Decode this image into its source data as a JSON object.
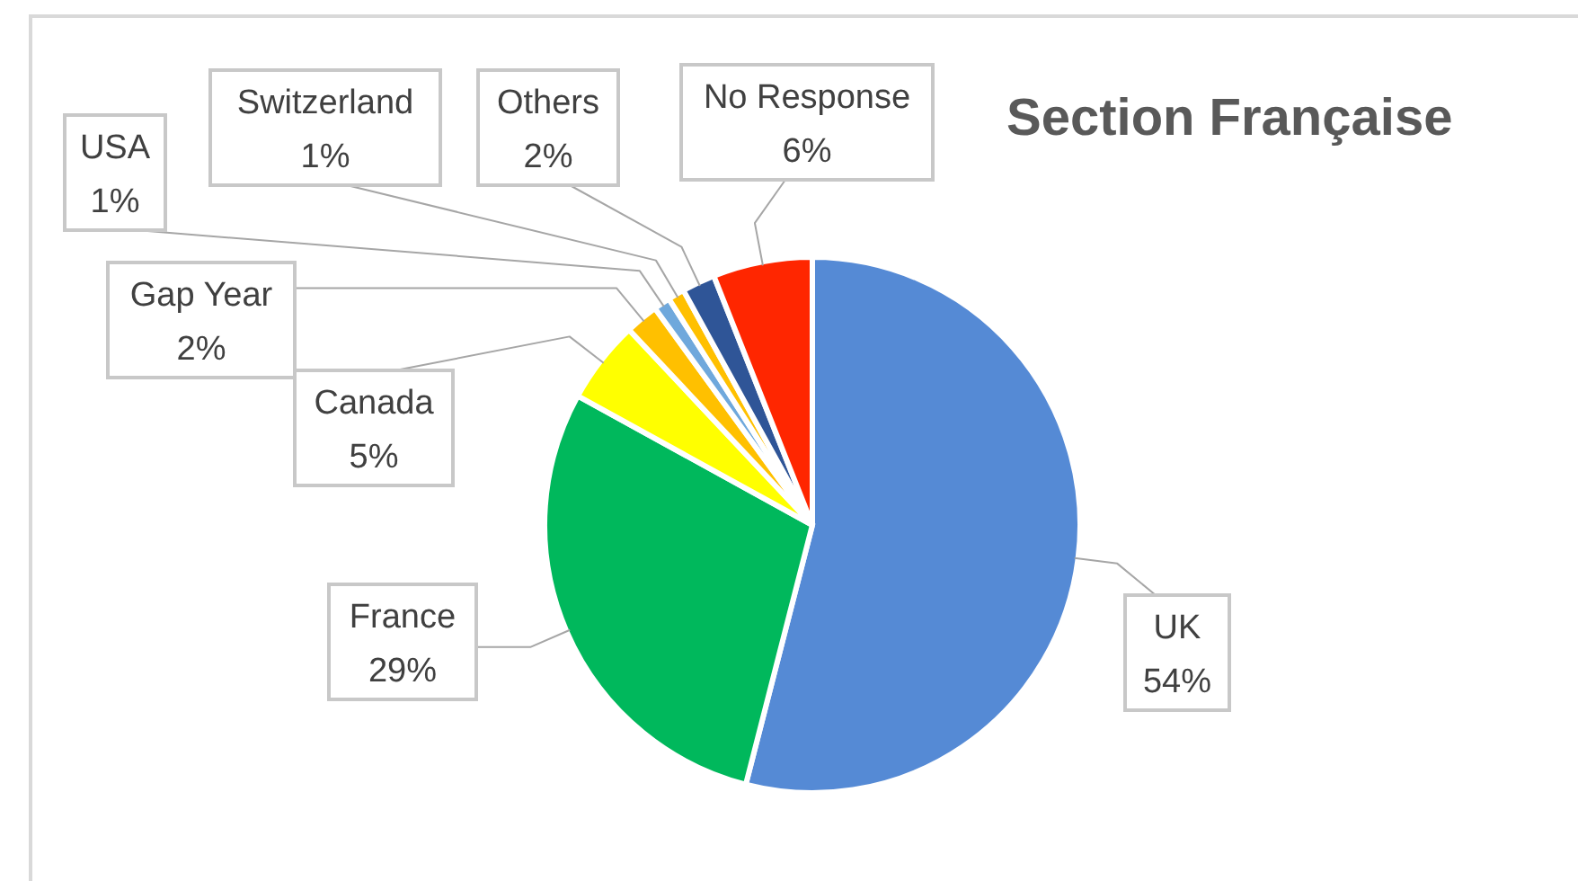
{
  "chart_data": {
    "type": "pie",
    "title": "Section Française",
    "categories": [
      "UK",
      "France",
      "Canada",
      "Gap Year",
      "USA",
      "Switzerland",
      "Others",
      "No Response"
    ],
    "values": [
      54,
      29,
      5,
      2,
      1,
      1,
      2,
      6
    ],
    "colors": [
      "#558ad5",
      "#00b85c",
      "#ffff00",
      "#ffc000",
      "#6fa8dc",
      "#ffc000",
      "#2f5597",
      "#ff2600"
    ],
    "value_labels": [
      "54%",
      "29%",
      "5%",
      "2%",
      "1%",
      "1%",
      "2%",
      "6%"
    ]
  }
}
